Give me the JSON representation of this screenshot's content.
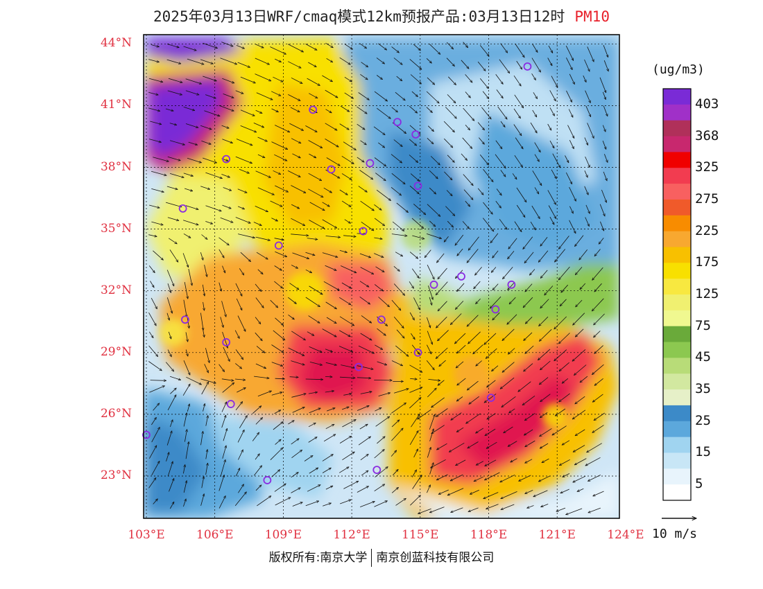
{
  "title": {
    "main": "2025年03月13日WRF/cmaq模式12km预报产品:03月13日12时",
    "pollutant": "PM10"
  },
  "lat_labels": [
    "44°N",
    "41°N",
    "38°N",
    "35°N",
    "32°N",
    "29°N",
    "26°N",
    "23°N"
  ],
  "lat_values": [
    44,
    41,
    38,
    35,
    32,
    29,
    26,
    23
  ],
  "lon_labels": [
    "103°E",
    "106°E",
    "109°E",
    "112°E",
    "115°E",
    "118°E",
    "121°E",
    "124°E"
  ],
  "lon_values": [
    103,
    106,
    109,
    112,
    115,
    118,
    121,
    124
  ],
  "colorbar": {
    "unit": "(ug/m3)",
    "labels": [
      "403",
      "368",
      "325",
      "275",
      "225",
      "175",
      "125",
      "75",
      "45",
      "35",
      "25",
      "15",
      "5"
    ],
    "colors_top_to_bottom": [
      "#7a2bd6",
      "#a030c8",
      "#b0305a",
      "#c8286e",
      "#f00000",
      "#f23c50",
      "#f86060",
      "#f05a2a",
      "#f88c00",
      "#f8a830",
      "#f8c000",
      "#f8e000",
      "#f8e840",
      "#f0f070",
      "#f0f890",
      "#6aaa3a",
      "#8cc850",
      "#b8dc78",
      "#d2e8a0",
      "#e6f0c8",
      "#3c8ac8",
      "#5ca8dc",
      "#a0d4f0",
      "#c8e6f6",
      "#e8f4fc",
      "#ffffff"
    ]
  },
  "wind_reference": "10 m/s",
  "credit": {
    "left": "版权所有:南京大学",
    "right": "南京创蓝科技有限公司"
  },
  "cities": [
    {
      "lon": 119.7,
      "lat": 42.9
    },
    {
      "lon": 110.3,
      "lat": 40.8
    },
    {
      "lon": 114.0,
      "lat": 40.2
    },
    {
      "lon": 114.8,
      "lat": 39.6
    },
    {
      "lon": 106.5,
      "lat": 38.4
    },
    {
      "lon": 111.1,
      "lat": 37.9
    },
    {
      "lon": 112.8,
      "lat": 38.2
    },
    {
      "lon": 114.9,
      "lat": 37.1
    },
    {
      "lon": 104.6,
      "lat": 36.0
    },
    {
      "lon": 112.5,
      "lat": 34.9
    },
    {
      "lon": 108.8,
      "lat": 34.2
    },
    {
      "lon": 116.8,
      "lat": 32.7
    },
    {
      "lon": 115.6,
      "lat": 32.3
    },
    {
      "lon": 119.0,
      "lat": 32.3
    },
    {
      "lon": 118.3,
      "lat": 31.1
    },
    {
      "lon": 104.7,
      "lat": 30.6
    },
    {
      "lon": 113.3,
      "lat": 30.6
    },
    {
      "lon": 106.5,
      "lat": 29.5
    },
    {
      "lon": 114.9,
      "lat": 29.0
    },
    {
      "lon": 112.3,
      "lat": 28.3
    },
    {
      "lon": 106.7,
      "lat": 26.5
    },
    {
      "lon": 118.1,
      "lat": 26.8
    },
    {
      "lon": 103.0,
      "lat": 25.0
    },
    {
      "lon": 108.3,
      "lat": 22.8
    },
    {
      "lon": 113.1,
      "lat": 23.3
    }
  ]
}
